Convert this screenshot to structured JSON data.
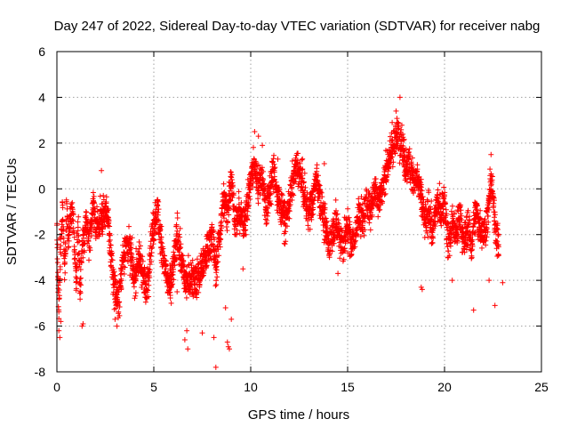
{
  "chart_data": {
    "type": "scatter",
    "title": "Day 247 of 2022, Sidereal Day-to-day VTEC variation (SDTVAR) for receiver nabg",
    "xlabel": "GPS time / hours",
    "ylabel": "SDTVAR / TECUs",
    "xlim": [
      0,
      25
    ],
    "ylim": [
      -8,
      6
    ],
    "xticks": [
      "0",
      "5",
      "10",
      "15",
      "20",
      "25"
    ],
    "yticks": [
      "-8",
      "-6",
      "-4",
      "-2",
      "0",
      "2",
      "4",
      "6"
    ],
    "grid": true,
    "marker": "+",
    "color": "#ff0000",
    "trend": [
      [
        0.0,
        -1.5
      ],
      [
        0.1,
        -5.5
      ],
      [
        0.2,
        -2.5
      ],
      [
        0.3,
        -1.0
      ],
      [
        0.4,
        -3.5
      ],
      [
        0.5,
        -1.2
      ],
      [
        0.6,
        -2.0
      ],
      [
        0.8,
        -0.8
      ],
      [
        0.9,
        -2.5
      ],
      [
        1.0,
        -4.0
      ],
      [
        1.1,
        -1.5
      ],
      [
        1.2,
        -4.5
      ],
      [
        1.3,
        -2.5
      ],
      [
        1.5,
        -1.5
      ],
      [
        1.7,
        -2.5
      ],
      [
        1.9,
        -0.5
      ],
      [
        2.0,
        -1.8
      ],
      [
        2.2,
        -1.5
      ],
      [
        2.4,
        -1.2
      ],
      [
        2.6,
        -1.0
      ],
      [
        2.8,
        -3.0
      ],
      [
        3.0,
        -4.5
      ],
      [
        3.2,
        -5.0
      ],
      [
        3.4,
        -3.0
      ],
      [
        3.6,
        -2.5
      ],
      [
        3.8,
        -2.8
      ],
      [
        4.0,
        -4.0
      ],
      [
        4.2,
        -3.0
      ],
      [
        4.4,
        -3.5
      ],
      [
        4.6,
        -4.5
      ],
      [
        4.8,
        -3.0
      ],
      [
        5.0,
        -1.5
      ],
      [
        5.2,
        -1.0
      ],
      [
        5.4,
        -2.5
      ],
      [
        5.6,
        -3.5
      ],
      [
        5.8,
        -4.5
      ],
      [
        6.0,
        -3.5
      ],
      [
        6.2,
        -2.0
      ],
      [
        6.4,
        -3.0
      ],
      [
        6.6,
        -4.0
      ],
      [
        6.8,
        -4.0
      ],
      [
        7.0,
        -3.8
      ],
      [
        7.2,
        -4.0
      ],
      [
        7.5,
        -3.5
      ],
      [
        7.8,
        -2.5
      ],
      [
        8.0,
        -2.0
      ],
      [
        8.2,
        -3.5
      ],
      [
        8.4,
        -2.0
      ],
      [
        8.6,
        -0.5
      ],
      [
        8.8,
        -1.0
      ],
      [
        9.0,
        0.5
      ],
      [
        9.2,
        -1.5
      ],
      [
        9.4,
        -1.0
      ],
      [
        9.6,
        -1.5
      ],
      [
        9.8,
        -1.0
      ],
      [
        10.0,
        0.5
      ],
      [
        10.2,
        1.0
      ],
      [
        10.4,
        0.2
      ],
      [
        10.6,
        0.5
      ],
      [
        10.8,
        -1.0
      ],
      [
        11.0,
        0.0
      ],
      [
        11.2,
        0.8
      ],
      [
        11.4,
        -0.5
      ],
      [
        11.6,
        -0.8
      ],
      [
        11.8,
        -1.5
      ],
      [
        12.0,
        -0.5
      ],
      [
        12.2,
        0.5
      ],
      [
        12.4,
        1.0
      ],
      [
        12.6,
        0.5
      ],
      [
        12.8,
        -0.5
      ],
      [
        13.0,
        -1.0
      ],
      [
        13.2,
        -0.5
      ],
      [
        13.4,
        0.5
      ],
      [
        13.6,
        -0.5
      ],
      [
        13.8,
        -1.5
      ],
      [
        14.0,
        -2.5
      ],
      [
        14.2,
        -2.0
      ],
      [
        14.4,
        -1.5
      ],
      [
        14.6,
        -2.0
      ],
      [
        14.8,
        -2.5
      ],
      [
        15.0,
        -1.5
      ],
      [
        15.2,
        -2.5
      ],
      [
        15.4,
        -2.0
      ],
      [
        15.6,
        -1.0
      ],
      [
        15.8,
        -1.5
      ],
      [
        16.0,
        -0.5
      ],
      [
        16.2,
        -1.0
      ],
      [
        16.4,
        0.2
      ],
      [
        16.6,
        -0.5
      ],
      [
        16.8,
        0.0
      ],
      [
        17.0,
        1.0
      ],
      [
        17.2,
        1.5
      ],
      [
        17.4,
        2.0
      ],
      [
        17.6,
        2.5
      ],
      [
        17.8,
        2.0
      ],
      [
        18.0,
        1.0
      ],
      [
        18.2,
        1.0
      ],
      [
        18.4,
        0.5
      ],
      [
        18.6,
        0.5
      ],
      [
        18.8,
        -0.5
      ],
      [
        19.0,
        -1.5
      ],
      [
        19.2,
        -1.0
      ],
      [
        19.4,
        -2.0
      ],
      [
        19.6,
        -0.5
      ],
      [
        19.8,
        -1.0
      ],
      [
        20.0,
        -0.5
      ],
      [
        20.2,
        -2.5
      ],
      [
        20.4,
        -1.5
      ],
      [
        20.6,
        -2.0
      ],
      [
        20.8,
        -1.0
      ],
      [
        21.0,
        -2.5
      ],
      [
        21.2,
        -1.5
      ],
      [
        21.4,
        -2.5
      ],
      [
        21.6,
        -1.0
      ],
      [
        21.8,
        -1.5
      ],
      [
        22.0,
        -2.0
      ],
      [
        22.2,
        -1.5
      ],
      [
        22.4,
        0.5
      ],
      [
        22.6,
        -1.5
      ],
      [
        22.8,
        -2.5
      ]
    ],
    "outliers": [
      [
        0.1,
        -6.2
      ],
      [
        0.15,
        -6.5
      ],
      [
        0.2,
        -5.8
      ],
      [
        1.3,
        -6.0
      ],
      [
        1.35,
        -5.9
      ],
      [
        3.0,
        -5.7
      ],
      [
        3.1,
        -6.0
      ],
      [
        6.7,
        -6.2
      ],
      [
        6.75,
        -7.0
      ],
      [
        6.6,
        -6.6
      ],
      [
        8.2,
        -7.8
      ],
      [
        8.1,
        -6.5
      ],
      [
        8.8,
        -6.7
      ],
      [
        8.85,
        -6.9
      ],
      [
        8.9,
        -7.0
      ],
      [
        8.7,
        -5.2
      ],
      [
        7.5,
        -6.3
      ],
      [
        9.0,
        -5.7
      ],
      [
        10.2,
        2.5
      ],
      [
        10.4,
        2.3
      ],
      [
        10.6,
        1.9
      ],
      [
        11.4,
        1.3
      ],
      [
        13.8,
        1.1
      ],
      [
        9.6,
        -3.5
      ],
      [
        18.8,
        -4.3
      ],
      [
        18.85,
        -4.4
      ],
      [
        5.9,
        -5.0
      ],
      [
        6.2,
        -4.5
      ],
      [
        2.3,
        0.8
      ],
      [
        17.7,
        4.0
      ],
      [
        17.5,
        3.4
      ],
      [
        17.3,
        2.9
      ],
      [
        21.5,
        -5.3
      ],
      [
        22.6,
        -5.1
      ],
      [
        22.3,
        -4.0
      ],
      [
        22.4,
        1.5
      ],
      [
        23.0,
        -4.1
      ],
      [
        20.4,
        -4.0
      ],
      [
        15.0,
        -2.8
      ],
      [
        14.5,
        -3.7
      ]
    ]
  }
}
